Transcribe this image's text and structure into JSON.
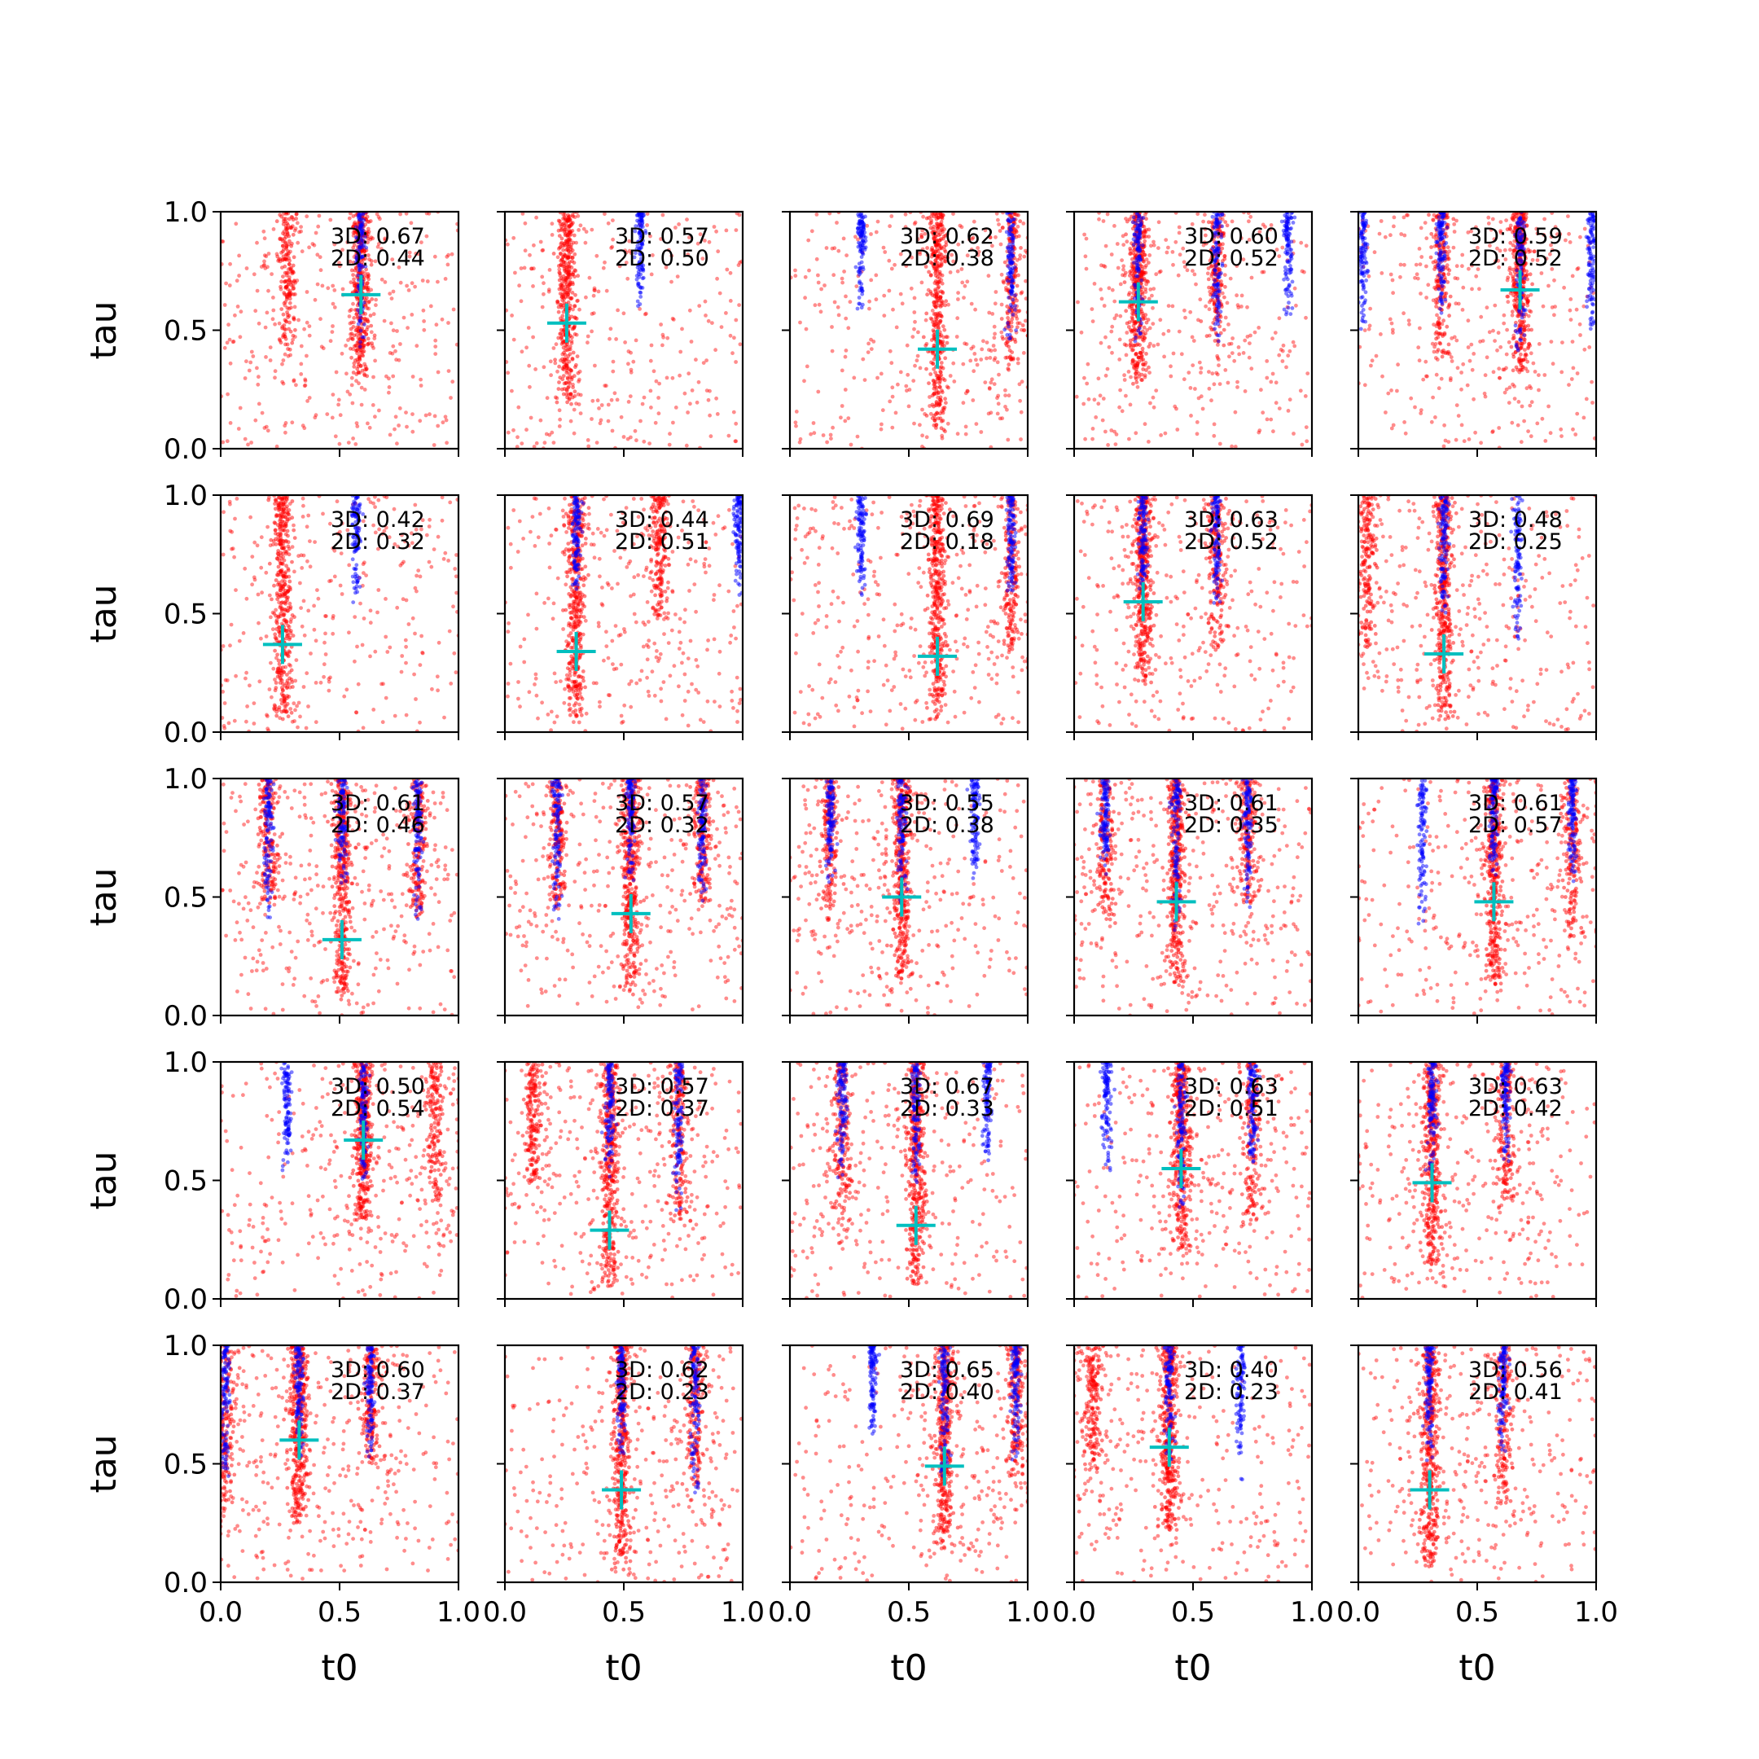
{
  "figure": {
    "layout": "5x5 grid of scatter panels",
    "xlabel": "t0",
    "ylabel": "tau",
    "xlim": [
      0,
      1
    ],
    "ylim": [
      0,
      1
    ],
    "xticks": [
      "0.0",
      "0.5",
      "1.0"
    ],
    "yticks": [
      "0.0",
      "0.5",
      "1.0"
    ],
    "colors": {
      "red_points": "#ff0000",
      "blue_points": "#0000ff",
      "marker": "#00bfbf",
      "axes": "#000000"
    }
  },
  "chart_data": [
    {
      "type": "scatter",
      "row": 1,
      "col": 1,
      "annotation_3d": "3D: 0.67",
      "annotation_2d": "2D: 0.44",
      "marker": {
        "t0": 0.59,
        "tau": 0.65
      },
      "red_bands": [
        0.28,
        0.59
      ],
      "blue_bands": [
        0.59
      ]
    },
    {
      "type": "scatter",
      "row": 1,
      "col": 2,
      "annotation_3d": "3D: 0.57",
      "annotation_2d": "2D: 0.50",
      "marker": {
        "t0": 0.26,
        "tau": 0.53
      },
      "red_bands": [
        0.26
      ],
      "blue_bands": [
        0.57
      ]
    },
    {
      "type": "scatter",
      "row": 1,
      "col": 3,
      "annotation_3d": "3D: 0.62",
      "annotation_2d": "2D: 0.38",
      "marker": {
        "t0": 0.62,
        "tau": 0.42
      },
      "red_bands": [
        0.62,
        0.93
      ],
      "blue_bands": [
        0.3,
        0.93
      ]
    },
    {
      "type": "scatter",
      "row": 1,
      "col": 4,
      "annotation_3d": "3D: 0.60",
      "annotation_2d": "2D: 0.52",
      "marker": {
        "t0": 0.27,
        "tau": 0.62
      },
      "red_bands": [
        0.27,
        0.6
      ],
      "blue_bands": [
        0.27,
        0.6,
        0.9
      ]
    },
    {
      "type": "scatter",
      "row": 1,
      "col": 5,
      "annotation_3d": "3D: 0.59",
      "annotation_2d": "2D: 0.52",
      "marker": {
        "t0": 0.68,
        "tau": 0.67
      },
      "red_bands": [
        0.35,
        0.68
      ],
      "blue_bands": [
        0.02,
        0.35,
        0.68,
        0.98
      ]
    },
    {
      "type": "scatter",
      "row": 2,
      "col": 1,
      "annotation_3d": "3D: 0.42",
      "annotation_2d": "2D: 0.32",
      "marker": {
        "t0": 0.26,
        "tau": 0.37
      },
      "red_bands": [
        0.26
      ],
      "blue_bands": [
        0.57
      ]
    },
    {
      "type": "scatter",
      "row": 2,
      "col": 2,
      "annotation_3d": "3D: 0.44",
      "annotation_2d": "2D: 0.51",
      "marker": {
        "t0": 0.3,
        "tau": 0.34
      },
      "red_bands": [
        0.3,
        0.65
      ],
      "blue_bands": [
        0.3,
        0.98
      ]
    },
    {
      "type": "scatter",
      "row": 2,
      "col": 3,
      "annotation_3d": "3D: 0.69",
      "annotation_2d": "2D: 0.18",
      "marker": {
        "t0": 0.62,
        "tau": 0.32
      },
      "red_bands": [
        0.62,
        0.93
      ],
      "blue_bands": [
        0.3,
        0.93
      ]
    },
    {
      "type": "scatter",
      "row": 2,
      "col": 4,
      "annotation_3d": "3D: 0.63",
      "annotation_2d": "2D: 0.52",
      "marker": {
        "t0": 0.29,
        "tau": 0.55
      },
      "red_bands": [
        0.29,
        0.6
      ],
      "blue_bands": [
        0.29,
        0.6
      ]
    },
    {
      "type": "scatter",
      "row": 2,
      "col": 5,
      "annotation_3d": "3D: 0.48",
      "annotation_2d": "2D: 0.25",
      "marker": {
        "t0": 0.36,
        "tau": 0.33
      },
      "red_bands": [
        0.04,
        0.36
      ],
      "blue_bands": [
        0.36,
        0.67
      ]
    },
    {
      "type": "scatter",
      "row": 3,
      "col": 1,
      "annotation_3d": "3D: 0.61",
      "annotation_2d": "2D: 0.46",
      "marker": {
        "t0": 0.51,
        "tau": 0.32
      },
      "red_bands": [
        0.2,
        0.51,
        0.83
      ],
      "blue_bands": [
        0.2,
        0.51,
        0.83
      ]
    },
    {
      "type": "scatter",
      "row": 3,
      "col": 2,
      "annotation_3d": "3D: 0.57",
      "annotation_2d": "2D: 0.32",
      "marker": {
        "t0": 0.53,
        "tau": 0.43
      },
      "red_bands": [
        0.22,
        0.53,
        0.83
      ],
      "blue_bands": [
        0.22,
        0.53,
        0.83
      ]
    },
    {
      "type": "scatter",
      "row": 3,
      "col": 3,
      "annotation_3d": "3D: 0.55",
      "annotation_2d": "2D: 0.38",
      "marker": {
        "t0": 0.47,
        "tau": 0.5
      },
      "red_bands": [
        0.17,
        0.47
      ],
      "blue_bands": [
        0.17,
        0.47,
        0.78
      ]
    },
    {
      "type": "scatter",
      "row": 3,
      "col": 4,
      "annotation_3d": "3D: 0.61",
      "annotation_2d": "2D: 0.35",
      "marker": {
        "t0": 0.43,
        "tau": 0.48
      },
      "red_bands": [
        0.13,
        0.43,
        0.73
      ],
      "blue_bands": [
        0.13,
        0.43,
        0.73
      ]
    },
    {
      "type": "scatter",
      "row": 3,
      "col": 5,
      "annotation_3d": "3D: 0.61",
      "annotation_2d": "2D: 0.57",
      "marker": {
        "t0": 0.57,
        "tau": 0.48
      },
      "red_bands": [
        0.57,
        0.9
      ],
      "blue_bands": [
        0.27,
        0.57,
        0.9
      ]
    },
    {
      "type": "scatter",
      "row": 4,
      "col": 1,
      "annotation_3d": "3D: 0.50",
      "annotation_2d": "2D: 0.54",
      "marker": {
        "t0": 0.6,
        "tau": 0.67
      },
      "red_bands": [
        0.6,
        0.9
      ],
      "blue_bands": [
        0.28,
        0.6
      ]
    },
    {
      "type": "scatter",
      "row": 4,
      "col": 2,
      "annotation_3d": "3D: 0.57",
      "annotation_2d": "2D: 0.37",
      "marker": {
        "t0": 0.44,
        "tau": 0.29
      },
      "red_bands": [
        0.12,
        0.44,
        0.73
      ],
      "blue_bands": [
        0.44,
        0.73
      ]
    },
    {
      "type": "scatter",
      "row": 4,
      "col": 3,
      "annotation_3d": "3D: 0.67",
      "annotation_2d": "2D: 0.33",
      "marker": {
        "t0": 0.53,
        "tau": 0.31
      },
      "red_bands": [
        0.22,
        0.53
      ],
      "blue_bands": [
        0.22,
        0.53,
        0.83
      ]
    },
    {
      "type": "scatter",
      "row": 4,
      "col": 4,
      "annotation_3d": "3D: 0.63",
      "annotation_2d": "2D: 0.51",
      "marker": {
        "t0": 0.45,
        "tau": 0.55
      },
      "red_bands": [
        0.45,
        0.75
      ],
      "blue_bands": [
        0.14,
        0.45,
        0.75
      ]
    },
    {
      "type": "scatter",
      "row": 4,
      "col": 5,
      "annotation_3d": "3D: 0.63",
      "annotation_2d": "2D: 0.42",
      "marker": {
        "t0": 0.31,
        "tau": 0.49
      },
      "red_bands": [
        0.31,
        0.62
      ],
      "blue_bands": [
        0.31,
        0.62
      ]
    },
    {
      "type": "scatter",
      "row": 5,
      "col": 1,
      "annotation_3d": "3D: 0.60",
      "annotation_2d": "2D: 0.37",
      "marker": {
        "t0": 0.33,
        "tau": 0.6
      },
      "red_bands": [
        0.02,
        0.33,
        0.63
      ],
      "blue_bands": [
        0.02,
        0.33,
        0.63
      ]
    },
    {
      "type": "scatter",
      "row": 5,
      "col": 2,
      "annotation_3d": "3D: 0.62",
      "annotation_2d": "2D: 0.23",
      "marker": {
        "t0": 0.49,
        "tau": 0.39
      },
      "red_bands": [
        0.49,
        0.8
      ],
      "blue_bands": [
        0.49,
        0.8
      ]
    },
    {
      "type": "scatter",
      "row": 5,
      "col": 3,
      "annotation_3d": "3D: 0.65",
      "annotation_2d": "2D: 0.40",
      "marker": {
        "t0": 0.65,
        "tau": 0.49
      },
      "red_bands": [
        0.65,
        0.95
      ],
      "blue_bands": [
        0.35,
        0.65,
        0.95
      ]
    },
    {
      "type": "scatter",
      "row": 5,
      "col": 4,
      "annotation_3d": "3D: 0.40",
      "annotation_2d": "2D: 0.23",
      "marker": {
        "t0": 0.4,
        "tau": 0.57
      },
      "red_bands": [
        0.08,
        0.4
      ],
      "blue_bands": [
        0.4,
        0.7
      ]
    },
    {
      "type": "scatter",
      "row": 5,
      "col": 5,
      "annotation_3d": "3D: 0.56",
      "annotation_2d": "2D: 0.41",
      "marker": {
        "t0": 0.3,
        "tau": 0.39
      },
      "red_bands": [
        0.3,
        0.61
      ],
      "blue_bands": [
        0.3,
        0.61
      ]
    }
  ]
}
